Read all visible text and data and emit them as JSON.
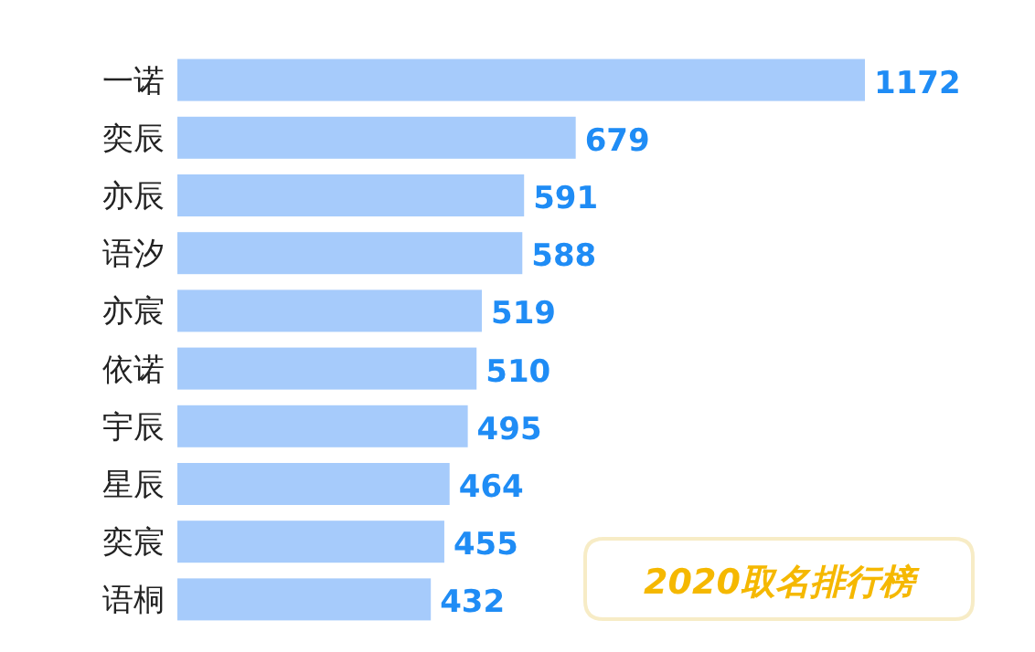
{
  "chart_data": {
    "type": "bar",
    "orientation": "horizontal",
    "title": "2020取名排行榜",
    "categories": [
      "一诺",
      "奕辰",
      "亦辰",
      "语汐",
      "亦宸",
      "依诺",
      "宇辰",
      "星辰",
      "奕宸",
      "语桐"
    ],
    "values": [
      1172,
      679,
      591,
      588,
      519,
      510,
      495,
      464,
      455,
      432
    ],
    "color": "#a6cbfb",
    "data_labels": true
  }
}
